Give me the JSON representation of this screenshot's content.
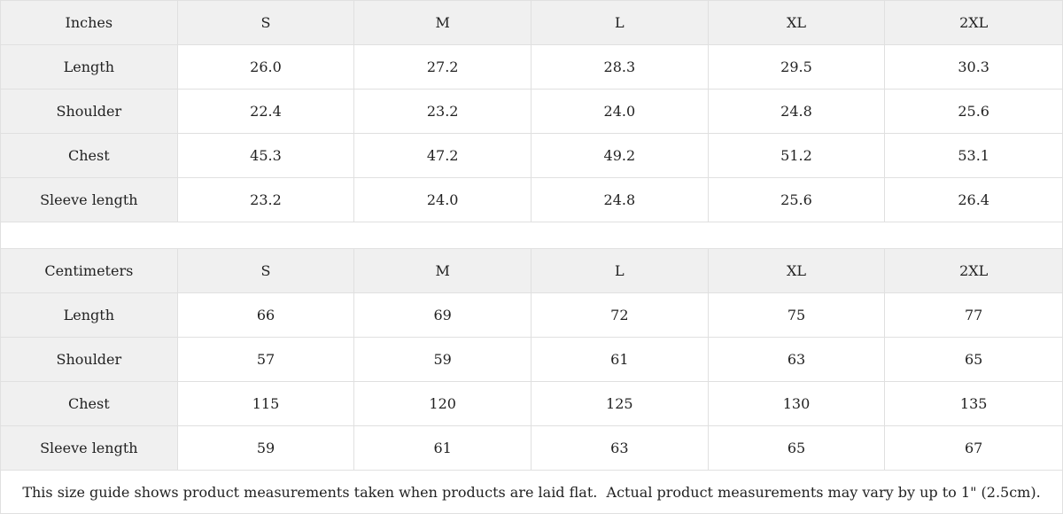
{
  "colors": {
    "header_background": "#f0f0f0",
    "label_column_background": "#f0f0f0",
    "cell_background": "#ffffff",
    "border": "#e0e0e0",
    "text": "#222222"
  },
  "tables": [
    {
      "header": {
        "label": "Inches",
        "sizes": [
          "S",
          "M",
          "L",
          "XL",
          "2XL"
        ]
      },
      "rows": [
        {
          "label": "Length",
          "values": [
            "26.0",
            "27.2",
            "28.3",
            "29.5",
            "30.3"
          ]
        },
        {
          "label": "Shoulder",
          "values": [
            "22.4",
            "23.2",
            "24.0",
            "24.8",
            "25.6"
          ]
        },
        {
          "label": "Chest",
          "values": [
            "45.3",
            "47.2",
            "49.2",
            "51.2",
            "53.1"
          ]
        },
        {
          "label": "Sleeve length",
          "values": [
            "23.2",
            "24.0",
            "24.8",
            "25.6",
            "26.4"
          ]
        }
      ]
    },
    {
      "header": {
        "label": "Centimeters",
        "sizes": [
          "S",
          "M",
          "L",
          "XL",
          "2XL"
        ]
      },
      "rows": [
        {
          "label": "Length",
          "values": [
            "66",
            "69",
            "72",
            "75",
            "77"
          ]
        },
        {
          "label": "Shoulder",
          "values": [
            "57",
            "59",
            "61",
            "63",
            "65"
          ]
        },
        {
          "label": "Chest",
          "values": [
            "115",
            "120",
            "125",
            "130",
            "135"
          ]
        },
        {
          "label": "Sleeve length",
          "values": [
            "59",
            "61",
            "63",
            "65",
            "67"
          ]
        }
      ]
    }
  ],
  "footer": {
    "note": "This size guide shows product measurements taken when products are laid flat.  Actual product measurements may vary by up to 1\" (2.5cm)."
  }
}
